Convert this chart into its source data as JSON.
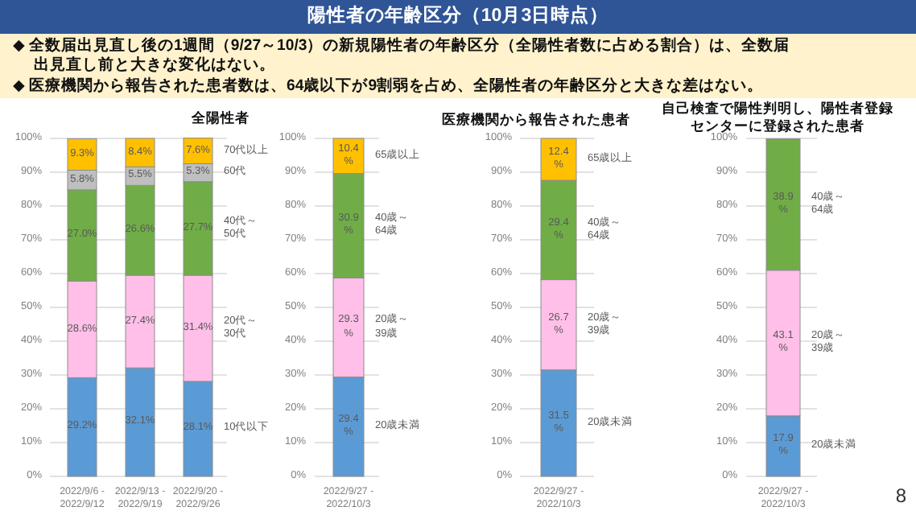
{
  "chart_data": [
    {
      "type": "bar",
      "title": "全陽性者",
      "stacked": true,
      "grid": "y",
      "ylim": [
        0,
        100
      ],
      "yticks": [
        {
          "value": 0,
          "label": "0%"
        },
        {
          "value": 10,
          "label": "10%"
        },
        {
          "value": 20,
          "label": "20%"
        },
        {
          "value": 30,
          "label": "30%"
        },
        {
          "value": 40,
          "label": "40%"
        },
        {
          "value": 50,
          "label": "50%"
        },
        {
          "value": 60,
          "label": "60%"
        },
        {
          "value": 70,
          "label": "70%"
        },
        {
          "value": 80,
          "label": "80%"
        },
        {
          "value": 90,
          "label": "90%"
        },
        {
          "value": 100,
          "label": "100%"
        }
      ],
      "categories": [
        "2022/9/6 -\n2022/9/12",
        "2022/9/13 -\n2022/9/19",
        "2022/9/20 -\n2022/9/26"
      ],
      "series": [
        {
          "name": "10代以下",
          "color": "#5b9bd5",
          "values": [
            29.2,
            32.1,
            28.1
          ],
          "value_labels": [
            "29.2%",
            "32.1%",
            "28.1%"
          ]
        },
        {
          "name": "20代～\n30代",
          "color": "#ffbfe8",
          "values": [
            28.6,
            27.4,
            31.4
          ],
          "value_labels": [
            "28.6%",
            "27.4%",
            "31.4%"
          ]
        },
        {
          "name": "40代～\n50代",
          "color": "#70ad47",
          "values": [
            27.0,
            26.6,
            27.7
          ],
          "value_labels": [
            "27.0%",
            "26.6%",
            "27.7%"
          ]
        },
        {
          "name": "60代",
          "color": "#bfbfbf",
          "values": [
            5.8,
            5.5,
            5.3
          ],
          "value_labels": [
            "5.8%",
            "5.5%",
            "5.3%"
          ]
        },
        {
          "name": "70代以上",
          "color": "#ffc000",
          "values": [
            9.3,
            8.4,
            7.6
          ],
          "value_labels": [
            "9.3%",
            "8.4%",
            "7.6%"
          ]
        }
      ],
      "annotations": [
        "陽性者の年齢区分（10月3日時点）",
        "◆ 全数届出見直し後の1週間（9/27～10/3）の新規陽性者の年齢区分（全陽性者数に占める割合）は、全数届出見直し前と大きな変化はない。",
        "◆ 医療機関から報告された患者数は、64歳以下が9割弱を占め、全陽性者の年齢区分と大きな差はない。",
        "8"
      ]
    },
    {
      "type": "bar",
      "stacked": true,
      "grid": "y",
      "ylim": [
        0,
        100
      ],
      "yticks": [
        {
          "value": 0,
          "label": "0%"
        },
        {
          "value": 10,
          "label": "10%"
        },
        {
          "value": 20,
          "label": "20%"
        },
        {
          "value": 30,
          "label": "30%"
        },
        {
          "value": 40,
          "label": "40%"
        },
        {
          "value": 50,
          "label": "50%"
        },
        {
          "value": 60,
          "label": "60%"
        },
        {
          "value": 70,
          "label": "70%"
        },
        {
          "value": 80,
          "label": "80%"
        },
        {
          "value": 90,
          "label": "90%"
        },
        {
          "value": 100,
          "label": "100%"
        }
      ],
      "categories": [
        "2022/9/27 -\n2022/10/3"
      ],
      "series": [
        {
          "name": "20歳未満",
          "color": "#5b9bd5",
          "values": [
            29.4
          ],
          "value_labels": [
            "29.4\n%"
          ]
        },
        {
          "name": "20歳～\n39歳",
          "color": "#ffbfe8",
          "values": [
            29.3
          ],
          "value_labels": [
            "29.3\n%"
          ]
        },
        {
          "name": "40歳～\n64歳",
          "color": "#70ad47",
          "values": [
            30.9
          ],
          "value_labels": [
            "30.9\n%"
          ]
        },
        {
          "name": "65歳以上",
          "color": "#ffc000",
          "values": [
            10.4
          ],
          "value_labels": [
            "10.4\n%"
          ]
        }
      ]
    },
    {
      "type": "bar",
      "title": "医療機関から報告された患者",
      "stacked": true,
      "grid": "y",
      "ylim": [
        0,
        100
      ],
      "yticks": [
        {
          "value": 0,
          "label": "0%"
        },
        {
          "value": 10,
          "label": "10%"
        },
        {
          "value": 20,
          "label": "20%"
        },
        {
          "value": 30,
          "label": "30%"
        },
        {
          "value": 40,
          "label": "40%"
        },
        {
          "value": 50,
          "label": "50%"
        },
        {
          "value": 60,
          "label": "60%"
        },
        {
          "value": 70,
          "label": "70%"
        },
        {
          "value": 80,
          "label": "80%"
        },
        {
          "value": 90,
          "label": "90%"
        },
        {
          "value": 100,
          "label": "100%"
        }
      ],
      "categories": [
        "2022/9/27 -\n2022/10/3"
      ],
      "series": [
        {
          "name": "20歳未満",
          "color": "#5b9bd5",
          "values": [
            31.5
          ],
          "value_labels": [
            "31.5\n%"
          ]
        },
        {
          "name": "20歳～\n39歳",
          "color": "#ffbfe8",
          "values": [
            26.7
          ],
          "value_labels": [
            "26.7\n%"
          ]
        },
        {
          "name": "40歳～\n64歳",
          "color": "#70ad47",
          "values": [
            29.4
          ],
          "value_labels": [
            "29.4\n%"
          ]
        },
        {
          "name": "65歳以上",
          "color": "#ffc000",
          "values": [
            12.4
          ],
          "value_labels": [
            "12.4\n%"
          ]
        }
      ]
    },
    {
      "type": "bar",
      "title": "自己検査で陽性判明し、陽性者登録センターに登録された患者",
      "stacked": true,
      "grid": "y",
      "ylim": [
        0,
        100
      ],
      "yticks": [
        {
          "value": 0,
          "label": "0%"
        },
        {
          "value": 10,
          "label": "10%"
        },
        {
          "value": 20,
          "label": "20%"
        },
        {
          "value": 30,
          "label": "30%"
        },
        {
          "value": 40,
          "label": "40%"
        },
        {
          "value": 50,
          "label": "50%"
        },
        {
          "value": 60,
          "label": "60%"
        },
        {
          "value": 70,
          "label": "70%"
        },
        {
          "value": 80,
          "label": "80%"
        },
        {
          "value": 90,
          "label": "90%"
        },
        {
          "value": 100,
          "label": "100%"
        }
      ],
      "categories": [
        "2022/9/27 -\n2022/10/3"
      ],
      "series": [
        {
          "name": "20歳未満",
          "color": "#5b9bd5",
          "values": [
            17.9
          ],
          "value_labels": [
            "17.9\n%"
          ]
        },
        {
          "name": "20歳～\n39歳",
          "color": "#ffbfe8",
          "values": [
            43.1
          ],
          "value_labels": [
            "43.1\n%"
          ]
        },
        {
          "name": "40歳～\n64歳",
          "color": "#70ad47",
          "values": [
            38.9
          ],
          "value_labels": [
            "38.9\n%"
          ]
        }
      ]
    }
  ]
}
